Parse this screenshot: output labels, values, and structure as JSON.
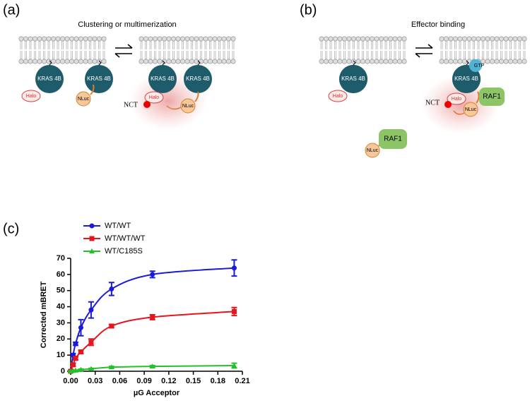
{
  "panel_a": {
    "label": "(a)",
    "title": "Clustering or multimerization",
    "kras_labels": [
      "KRAS 4B",
      "KRAS 4B",
      "KRAS 4B",
      "KRAS 4B"
    ],
    "halo_labels": [
      "Halo",
      "Halo"
    ],
    "nluc_labels": [
      "NLuc",
      "NLuc"
    ],
    "nct": "NCT"
  },
  "panel_b": {
    "label": "(b)",
    "title": "Effector binding",
    "kras_labels": [
      "KRAS 4B",
      "KRAS 4B"
    ],
    "gtp": "GTP",
    "halo_labels": [
      "Halo",
      "Halo"
    ],
    "nluc_labels": [
      "NLuc",
      "NLuc"
    ],
    "raf1_labels": [
      "RAF1",
      "RAF1"
    ],
    "nct": "NCT"
  },
  "chart_data": {
    "type": "scatter",
    "panel_label": "(c)",
    "x_label": "µG Acceptor",
    "y_label": "Corrected mBRET",
    "x": [
      0,
      0.003,
      0.006,
      0.0125,
      0.025,
      0.05,
      0.1,
      0.2
    ],
    "series": [
      {
        "name": "WT/WT",
        "color": "#1a1ad8",
        "marker": "circle",
        "values": [
          0,
          10,
          17,
          27,
          38,
          51,
          60,
          64
        ],
        "errors": [
          0.5,
          1,
          1,
          5,
          5,
          4,
          2,
          5
        ]
      },
      {
        "name": "WT/WT/WT",
        "color": "#e8141b",
        "marker": "square",
        "values": [
          0,
          4,
          8,
          12,
          18,
          28,
          33.5,
          37
        ],
        "errors": [
          0.5,
          1,
          1,
          1,
          2,
          1,
          1.5,
          2.5
        ]
      },
      {
        "name": "WT/C185S",
        "color": "#22c22a",
        "marker": "triangle",
        "values": [
          0,
          0.3,
          0.5,
          1,
          1.5,
          2.5,
          3,
          3.5
        ],
        "errors": [
          0.2,
          0.2,
          0.2,
          0.3,
          0.3,
          0.5,
          0.5,
          1.5
        ]
      }
    ],
    "xlim": [
      0,
      0.21
    ],
    "xticks": [
      {
        "value": 0,
        "label": "0.00"
      },
      0.03,
      0.06,
      0.09,
      0.12,
      0.15,
      0.18,
      0.21
    ],
    "ylim": [
      0,
      70
    ],
    "yticks": [
      0,
      10,
      20,
      30,
      40,
      50,
      60,
      70
    ]
  }
}
